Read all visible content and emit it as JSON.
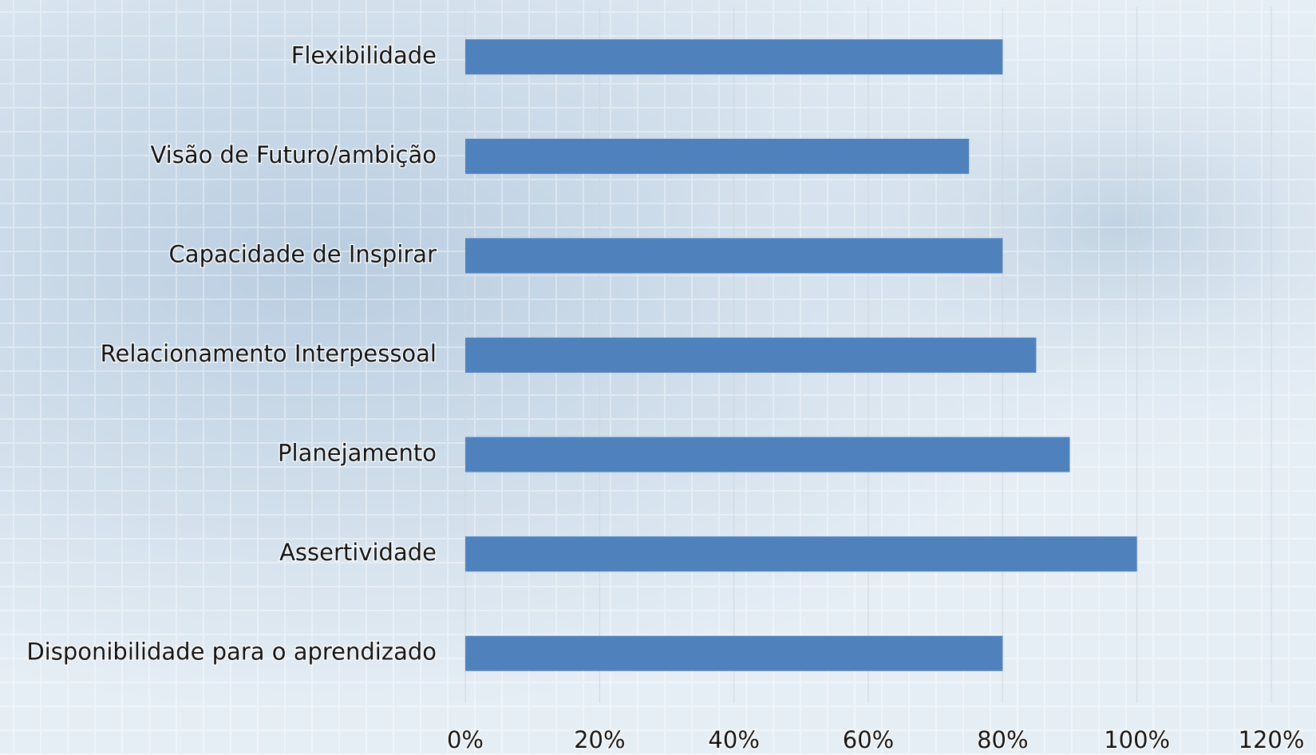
{
  "chart_data": {
    "type": "bar",
    "orientation": "horizontal",
    "categories": [
      "Flexibilidade",
      "Visão de Futuro/ambição",
      "Capacidade de Inspirar",
      "Relacionamento Interpessoal",
      "Planejamento",
      "Assertividade",
      "Disponibilidade para o aprendizado"
    ],
    "values": [
      80,
      75,
      80,
      85,
      90,
      100,
      80
    ],
    "color": "#4f81bd",
    "xlim": [
      0,
      120
    ],
    "xticks": [
      {
        "value": 0,
        "label": "0%"
      },
      {
        "value": 20,
        "label": "20%"
      },
      {
        "value": 40,
        "label": "40%"
      },
      {
        "value": 60,
        "label": "60%"
      },
      {
        "value": 80,
        "label": "80%"
      },
      {
        "value": 100,
        "label": "100%"
      },
      {
        "value": 120,
        "label": "120%"
      }
    ],
    "grid": true
  }
}
